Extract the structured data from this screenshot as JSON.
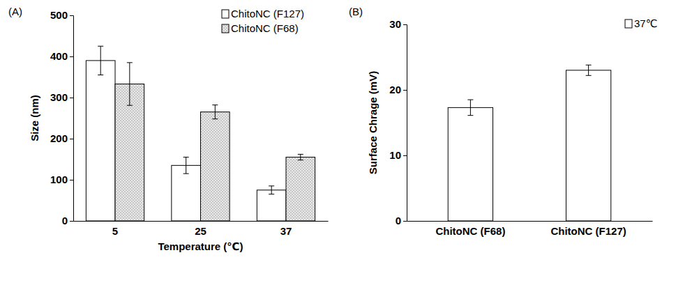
{
  "chart_data": [
    {
      "type": "bar",
      "title": "(A)",
      "x_label": "Temperature (℃)",
      "y_label": "Size (nm)",
      "categories": [
        "5",
        "25",
        "37"
      ],
      "series": [
        {
          "name": "ChitoNC (F127)",
          "color": "#ffffff",
          "values": [
            390,
            135,
            75
          ],
          "errors": [
            35,
            20,
            10
          ]
        },
        {
          "name": "ChitoNC (F68)",
          "color": "#e8e8e8",
          "values": [
            333,
            265,
            155
          ],
          "errors": [
            52,
            17,
            7
          ]
        }
      ],
      "ylim": [
        0,
        500
      ],
      "yticks": [
        0,
        100,
        200,
        300,
        400,
        500
      ],
      "legend": "upper right"
    },
    {
      "type": "bar",
      "title": "(B)",
      "y_label": "Surface Chrage (mV)",
      "categories": [
        "ChitoNC (F68)",
        "ChitoNC (F127)"
      ],
      "series": [
        {
          "name": "37℃",
          "color": "#ffffff",
          "values": [
            17.3,
            23
          ],
          "errors": [
            1.2,
            0.8
          ]
        }
      ],
      "ylim": [
        0,
        30
      ],
      "yticks": [
        0,
        10,
        20,
        30
      ],
      "legend": "upper right"
    }
  ]
}
